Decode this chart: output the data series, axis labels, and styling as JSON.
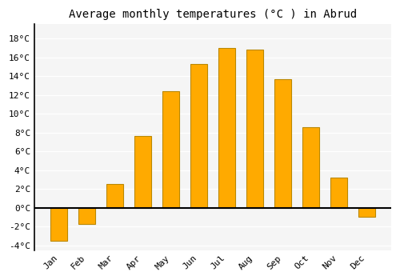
{
  "months": [
    "Jan",
    "Feb",
    "Mar",
    "Apr",
    "May",
    "Jun",
    "Jul",
    "Aug",
    "Sep",
    "Oct",
    "Nov",
    "Dec"
  ],
  "values": [
    -3.5,
    -1.7,
    2.5,
    7.6,
    12.4,
    15.3,
    17.0,
    16.8,
    13.7,
    8.6,
    3.2,
    -1.0
  ],
  "bar_color": "#FFAA00",
  "bar_edge_color": "#BB8800",
  "title": "Average monthly temperatures (°C ) in Abrud",
  "ylim": [
    -4.5,
    19.5
  ],
  "yticks": [
    -4,
    -2,
    0,
    2,
    4,
    6,
    8,
    10,
    12,
    14,
    16,
    18
  ],
  "ytick_labels": [
    "-4°C",
    "-2°C",
    "0°C",
    "2°C",
    "4°C",
    "6°C",
    "8°C",
    "10°C",
    "12°C",
    "14°C",
    "16°C",
    "18°C"
  ],
  "background_color": "#ffffff",
  "plot_background": "#f5f5f5",
  "grid_color": "#ffffff",
  "title_fontsize": 10,
  "tick_fontsize": 8,
  "bar_width": 0.6
}
